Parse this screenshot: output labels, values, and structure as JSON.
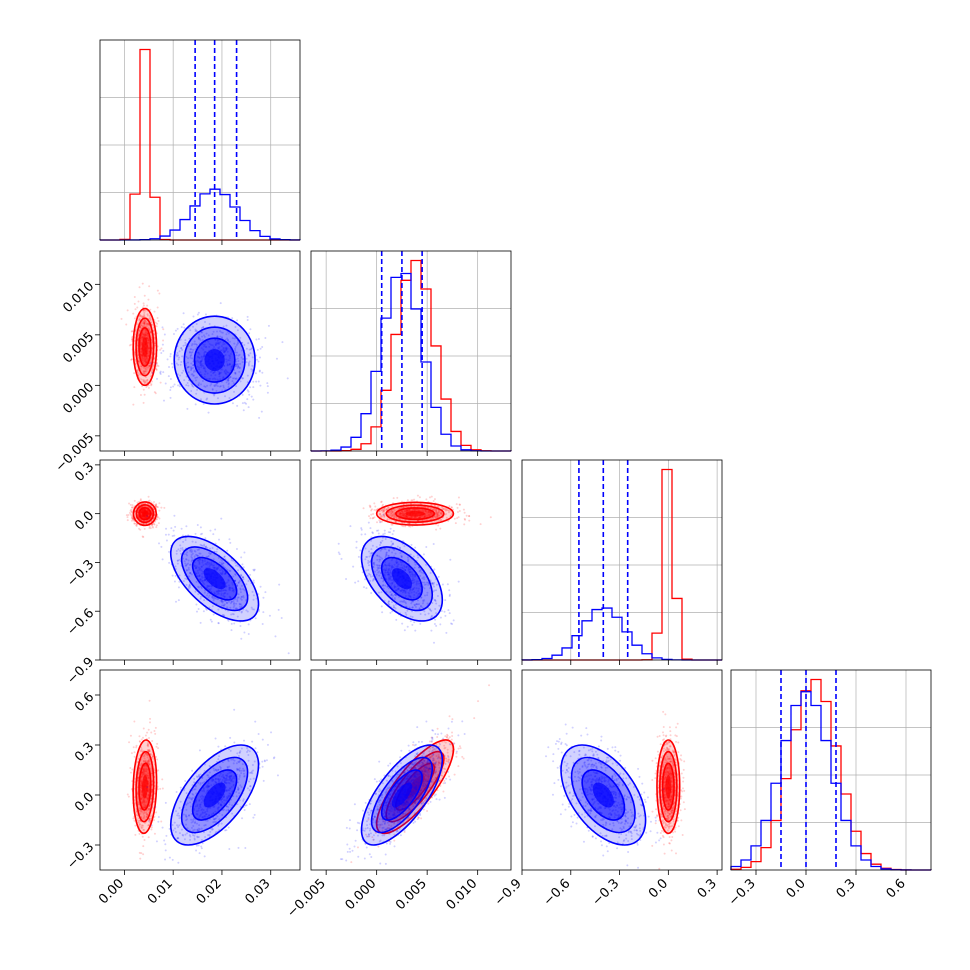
{
  "chart_data": {
    "type": "corner",
    "colors": {
      "red": "#ff0000",
      "blue": "#0000ff",
      "grid": "#b0b0b0"
    },
    "parameters": [
      {
        "ticks": [
          "0.00",
          "0.01",
          "0.02",
          "0.03"
        ],
        "tick_values": [
          0.0,
          0.01,
          0.02,
          0.03
        ],
        "range": [
          -0.005,
          0.036
        ]
      },
      {
        "ticks": [
          "−0.005",
          "0.000",
          "0.005",
          "0.010"
        ],
        "tick_values": [
          -0.005,
          0.0,
          0.005,
          0.01
        ],
        "range": [
          -0.0065,
          0.0133
        ]
      },
      {
        "ticks": [
          "−0.9",
          "−0.6",
          "−0.3",
          "0.0",
          "0.3"
        ],
        "tick_values": [
          -0.9,
          -0.6,
          -0.3,
          0.0,
          0.3
        ],
        "range": [
          -0.9,
          0.33
        ]
      },
      {
        "ticks": [
          "−0.3",
          "0.0",
          "0.3",
          "0.6"
        ],
        "tick_values": [
          -0.3,
          0.0,
          0.3,
          0.6
        ],
        "range": [
          -0.45,
          0.75
        ]
      }
    ],
    "series": [
      {
        "color": "red",
        "mean": [
          0.0042,
          0.0038,
          0.0,
          0.05
        ],
        "std": [
          0.0012,
          0.0019,
          0.035,
          0.14
        ],
        "corr": {
          "0-3": 0.1,
          "1-3": 0.8
        }
      },
      {
        "color": "blue",
        "mean": [
          0.0185,
          0.0025,
          -0.4,
          0.0
        ],
        "std": [
          0.0045,
          0.002,
          0.13,
          0.15
        ],
        "corr": {
          "0-2": -0.6,
          "0-3": 0.6,
          "1-2": -0.5,
          "1-3": 0.7,
          "2-3": -0.5
        }
      }
    ],
    "quantile_lines": [
      [
        0.0145,
        0.0185,
        0.023
      ],
      [
        0.0005,
        0.0025,
        0.0045
      ],
      [
        -0.55,
        -0.4,
        -0.25
      ],
      [
        -0.15,
        0.0,
        0.18
      ]
    ]
  }
}
